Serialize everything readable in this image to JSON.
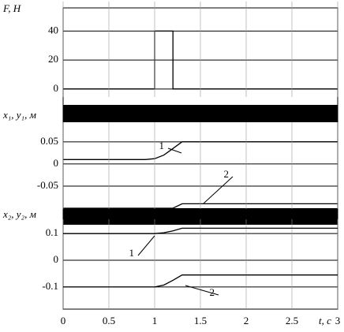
{
  "chart_data": [
    {
      "type": "line",
      "ylabel": "F, Н",
      "xlim": [
        0,
        3
      ],
      "ylim": [
        -5,
        56
      ],
      "yticks": [
        0,
        20,
        40
      ],
      "grid": true,
      "series": [
        {
          "color": "#000000",
          "x": [
            0,
            1,
            1,
            1.2,
            1.2,
            3
          ],
          "values": [
            0,
            0,
            40,
            40,
            0,
            0
          ]
        }
      ]
    },
    {
      "type": "line",
      "ylabel": "x₁, y₁, м",
      "xlim": [
        0,
        3
      ],
      "ylim": [
        -0.1,
        0.08
      ],
      "yticks": [
        0.05,
        0,
        -0.05
      ],
      "grid": true,
      "series": [
        {
          "name": "1",
          "color": "#000000",
          "x": [
            0,
            0.9,
            1.0,
            1.1,
            1.2,
            1.3,
            3
          ],
          "values": [
            0.01,
            0.01,
            0.012,
            0.02,
            0.035,
            0.05,
            0.05
          ]
        },
        {
          "name": "2",
          "color": "#000000",
          "x": [
            0,
            1.2,
            1.3,
            3
          ],
          "values": [
            -0.1,
            -0.1,
            -0.09,
            -0.09
          ]
        }
      ]
    },
    {
      "type": "line",
      "ylabel": "x₂, y₂, м",
      "xlabel": "t, с",
      "xlim": [
        0,
        3
      ],
      "xticks": [
        0,
        0.5,
        1,
        1.5,
        2,
        2.5,
        3
      ],
      "ylim": [
        -0.18,
        0.13
      ],
      "yticks": [
        0.1,
        0,
        -0.1
      ],
      "grid": true,
      "series": [
        {
          "name": "1",
          "color": "#000000",
          "x": [
            0,
            1.0,
            1.1,
            1.2,
            1.3,
            3
          ],
          "values": [
            0.1,
            0.1,
            0.103,
            0.11,
            0.12,
            0.12
          ]
        },
        {
          "name": "2",
          "color": "#000000",
          "x": [
            0,
            1.0,
            1.1,
            1.2,
            1.3,
            3
          ],
          "values": [
            -0.1,
            -0.1,
            -0.093,
            -0.075,
            -0.055,
            -0.055
          ]
        }
      ]
    }
  ]
}
